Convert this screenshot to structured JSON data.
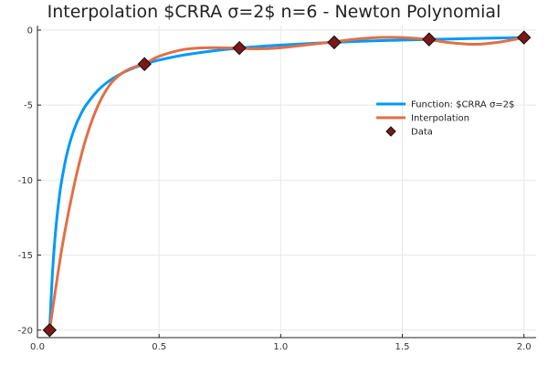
{
  "chart_data": {
    "type": "line",
    "title": "Interpolation $CRRA    σ=2$ n=6 - Newton Polynomial",
    "xlabel": "",
    "ylabel": "",
    "xlim": [
      0.0,
      2.05
    ],
    "ylim": [
      -20.5,
      0.3
    ],
    "xticks": [
      0.0,
      0.5,
      1.0,
      1.5,
      2.0
    ],
    "xtick_labels": [
      "0.0",
      "0.5",
      "1.0",
      "1.5",
      "2.0"
    ],
    "yticks": [
      0,
      -5,
      -10,
      -15,
      -20
    ],
    "ytick_labels": [
      "0",
      "-5",
      "-10",
      "-15",
      "-20"
    ],
    "grid": true,
    "legend_position": "right",
    "series": [
      {
        "name": "Function: $CRRA    σ=2$",
        "kind": "line",
        "color": "#009af9",
        "x": [
          0.05,
          0.06,
          0.07,
          0.08,
          0.09,
          0.1,
          0.12,
          0.14,
          0.16,
          0.18,
          0.2,
          0.25,
          0.3,
          0.35,
          0.4,
          0.45,
          0.5,
          0.6,
          0.7,
          0.8,
          0.9,
          1.0,
          1.2,
          1.4,
          1.6,
          1.8,
          2.0
        ],
        "y": [
          -20,
          -16.67,
          -14.29,
          -12.5,
          -11.11,
          -10,
          -8.33,
          -7.14,
          -6.25,
          -5.56,
          -5,
          -4,
          -3.33,
          -2.86,
          -2.5,
          -2.22,
          -2,
          -1.67,
          -1.43,
          -1.25,
          -1.11,
          -1,
          -0.83,
          -0.71,
          -0.63,
          -0.56,
          -0.5
        ]
      },
      {
        "name": "Interpolation",
        "kind": "line",
        "color": "#e26f46",
        "x": [
          0.05,
          0.1,
          0.15,
          0.2,
          0.25,
          0.3,
          0.35,
          0.4,
          0.44,
          0.5,
          0.6,
          0.7,
          0.8,
          0.9,
          1.0,
          1.1,
          1.2,
          1.3,
          1.4,
          1.5,
          1.6,
          1.7,
          1.8,
          1.9,
          2.0
        ],
        "y": [
          -20,
          -14.6,
          -10.4,
          -7.2,
          -5.0,
          -3.6,
          -2.85,
          -2.45,
          -2.26,
          -1.75,
          -1.3,
          -1.18,
          -1.2,
          -1.25,
          -1.18,
          -1.0,
          -0.82,
          -0.62,
          -0.5,
          -0.5,
          -0.62,
          -0.85,
          -0.95,
          -0.8,
          -0.5
        ]
      },
      {
        "name": "Data",
        "kind": "scatter",
        "color": "#7b1818",
        "x": [
          0.05,
          0.44,
          0.83,
          1.22,
          1.61,
          2.0
        ],
        "y": [
          -20.0,
          -2.27,
          -1.2,
          -0.82,
          -0.62,
          -0.5
        ]
      }
    ]
  }
}
